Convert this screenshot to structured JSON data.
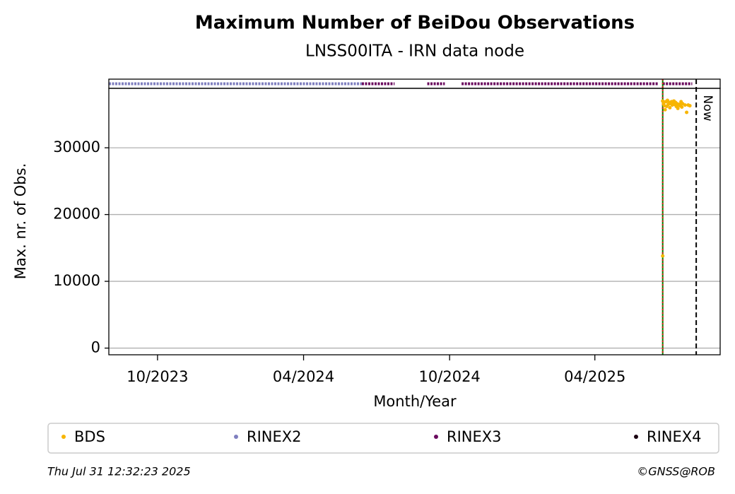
{
  "chart_data": {
    "type": "scatter",
    "title": "Maximum Number of BeiDou Observations",
    "subtitle": "LNSS00ITA - IRN data node",
    "x_label": "Month/Year",
    "y_label": "Max. nr. of Obs.",
    "xlim": [
      "2023-08-01",
      "2025-09-05"
    ],
    "xticks": [
      {
        "value": "2023-10-01",
        "label": "10/2023"
      },
      {
        "value": "2024-04-01",
        "label": "04/2024"
      },
      {
        "value": "2024-10-01",
        "label": "10/2024"
      },
      {
        "value": "2025-04-01",
        "label": "04/2025"
      }
    ],
    "ylim": [
      -1000,
      38900
    ],
    "yticks": [
      0,
      10000,
      20000,
      30000
    ],
    "grid": true,
    "series": [
      {
        "name": "BDS",
        "color": "#f7b500",
        "x": [
          "2025-06-25",
          "2025-06-25",
          "2025-06-26",
          "2025-06-27",
          "2025-06-28",
          "2025-06-29",
          "2025-06-30",
          "2025-07-01",
          "2025-07-02",
          "2025-07-03",
          "2025-07-04",
          "2025-07-05",
          "2025-07-06",
          "2025-07-07",
          "2025-07-08",
          "2025-07-09",
          "2025-07-10",
          "2025-07-11",
          "2025-07-12",
          "2025-07-13",
          "2025-07-14",
          "2025-07-15",
          "2025-07-16",
          "2025-07-17",
          "2025-07-18",
          "2025-07-19",
          "2025-07-20",
          "2025-07-23",
          "2025-07-25",
          "2025-07-27",
          "2025-07-29"
        ],
        "values": [
          13800,
          37000,
          36600,
          36300,
          35700,
          36900,
          36200,
          37100,
          36500,
          36800,
          36000,
          36600,
          36900,
          36400,
          36700,
          37000,
          36500,
          36800,
          36200,
          36600,
          35900,
          36400,
          36500,
          36300,
          36900,
          36100,
          36600,
          36400,
          35300,
          36400,
          36300
        ]
      }
    ],
    "coverage": [
      {
        "name": "RINEX2",
        "color": "#7f7fbf",
        "ranges": [
          [
            "2023-08-01",
            "2024-06-13"
          ]
        ]
      },
      {
        "name": "RINEX3",
        "color": "#6a0a5e",
        "ranges": [
          [
            "2024-06-13",
            "2024-07-24"
          ],
          [
            "2024-09-03",
            "2024-09-25"
          ],
          [
            "2024-10-16",
            "2025-06-20"
          ],
          [
            "2025-06-25",
            "2025-08-01"
          ]
        ]
      },
      {
        "name": "RINEX4",
        "color": "#1a0010",
        "ranges": []
      }
    ],
    "vlines": [
      {
        "x": "2025-06-25",
        "color": "#008000",
        "style": "solid"
      },
      {
        "x": "2025-06-25",
        "color": "#e0201b",
        "style": "dotted"
      },
      {
        "x": "2025-08-06",
        "color": "#000000",
        "style": "dashed",
        "label": "Now"
      }
    ],
    "timestamp": "Thu Jul 31 12:32:23 2025",
    "credit": "©GNSS@ROB"
  }
}
